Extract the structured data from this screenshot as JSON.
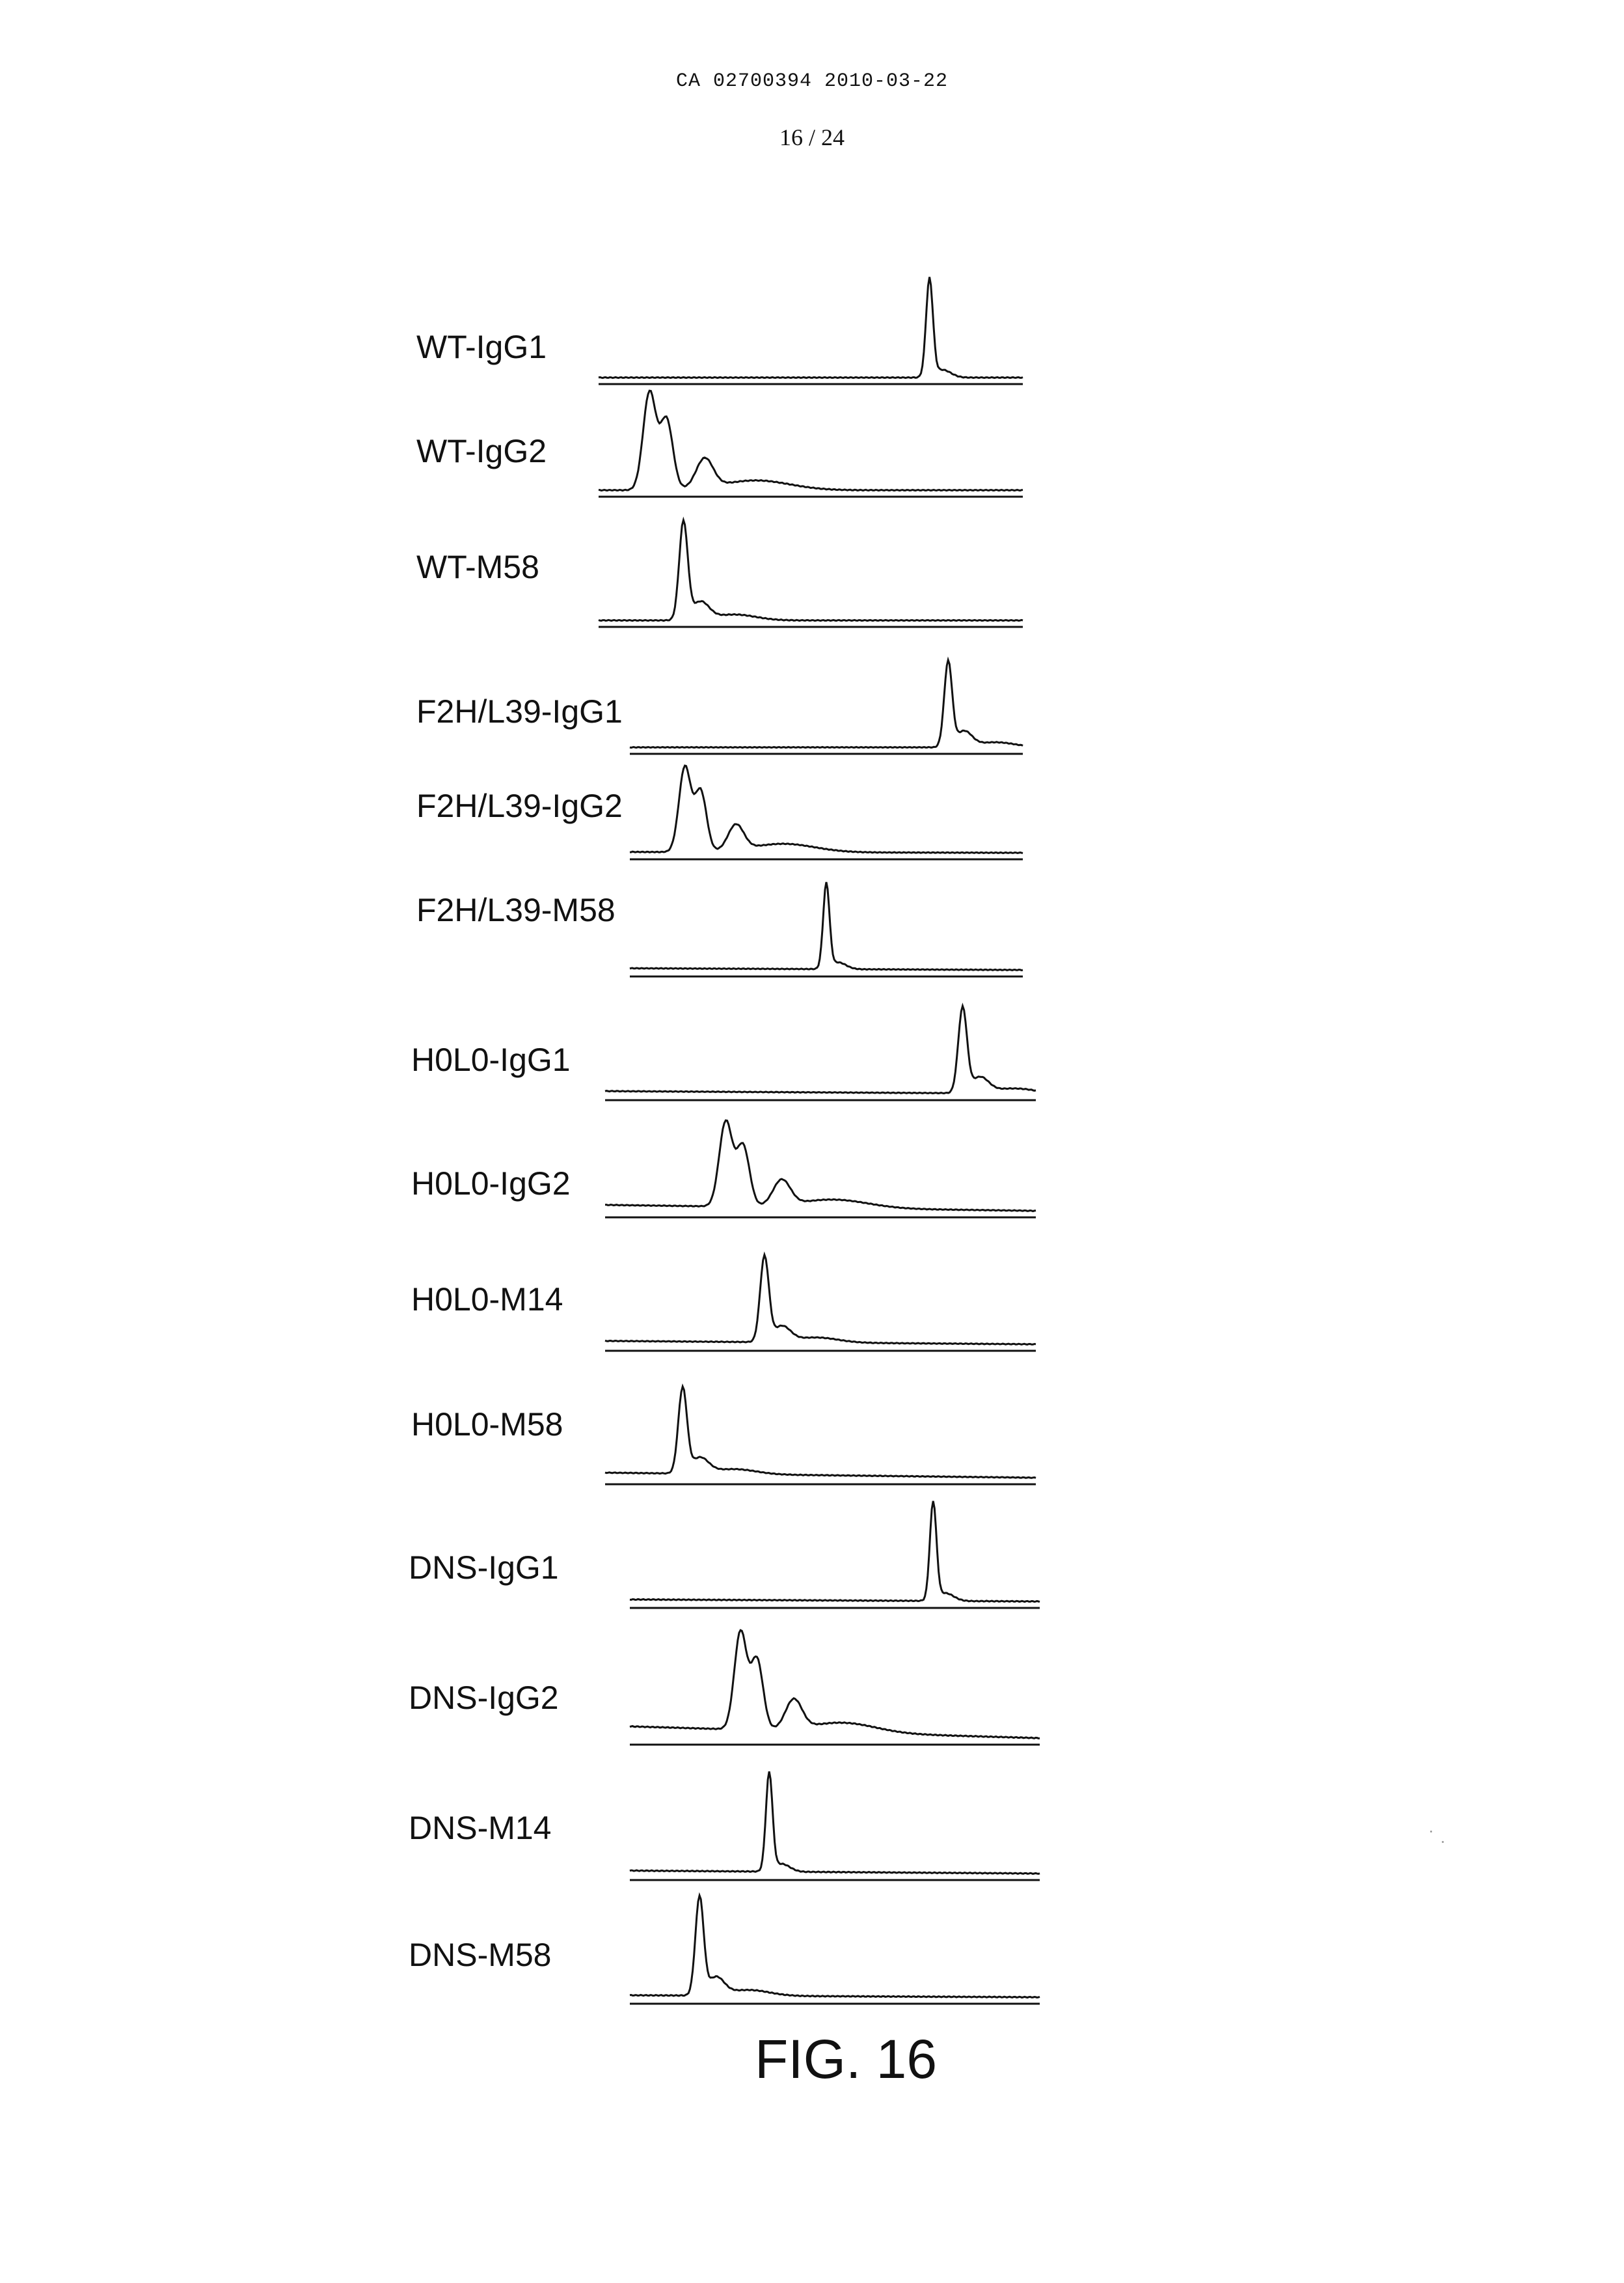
{
  "header": {
    "doc_ref": "CA 02700394 2010-03-22",
    "page_number": "16 / 24"
  },
  "figure": {
    "caption": "FIG. 16",
    "traces": [
      {
        "label": "WT-IgG1",
        "peak": 0.78,
        "shape": "single",
        "baseline_tilt": 0.0
      },
      {
        "label": "WT-IgG2",
        "peak": 0.12,
        "shape": "complex",
        "baseline_tilt": 0.0
      },
      {
        "label": "WT-M58",
        "peak": 0.2,
        "shape": "shoulder",
        "baseline_tilt": 0.0
      },
      {
        "label": "F2H/L39-IgG1",
        "peak": 0.81,
        "shape": "shoulder",
        "baseline_tilt": 0.0
      },
      {
        "label": "F2H/L39-IgG2",
        "peak": 0.14,
        "shape": "complex",
        "baseline_tilt": 0.01
      },
      {
        "label": "F2H/L39-M58",
        "peak": 0.5,
        "shape": "single",
        "baseline_tilt": 0.02
      },
      {
        "label": "H0L0-IgG1",
        "peak": 0.83,
        "shape": "shoulder",
        "baseline_tilt": 0.03
      },
      {
        "label": "H0L0-IgG2",
        "peak": 0.28,
        "shape": "complex",
        "baseline_tilt": 0.07
      },
      {
        "label": "H0L0-M14",
        "peak": 0.37,
        "shape": "shoulder",
        "baseline_tilt": 0.04
      },
      {
        "label": "H0L0-M58",
        "peak": 0.18,
        "shape": "shoulder",
        "baseline_tilt": 0.06
      },
      {
        "label": "DNS-IgG1",
        "peak": 0.74,
        "shape": "single",
        "baseline_tilt": 0.02
      },
      {
        "label": "DNS-IgG2",
        "peak": 0.27,
        "shape": "complex",
        "baseline_tilt": 0.12
      },
      {
        "label": "DNS-M14",
        "peak": 0.34,
        "shape": "single",
        "baseline_tilt": 0.03
      },
      {
        "label": "DNS-M58",
        "peak": 0.17,
        "shape": "shoulder",
        "baseline_tilt": 0.02
      }
    ]
  }
}
